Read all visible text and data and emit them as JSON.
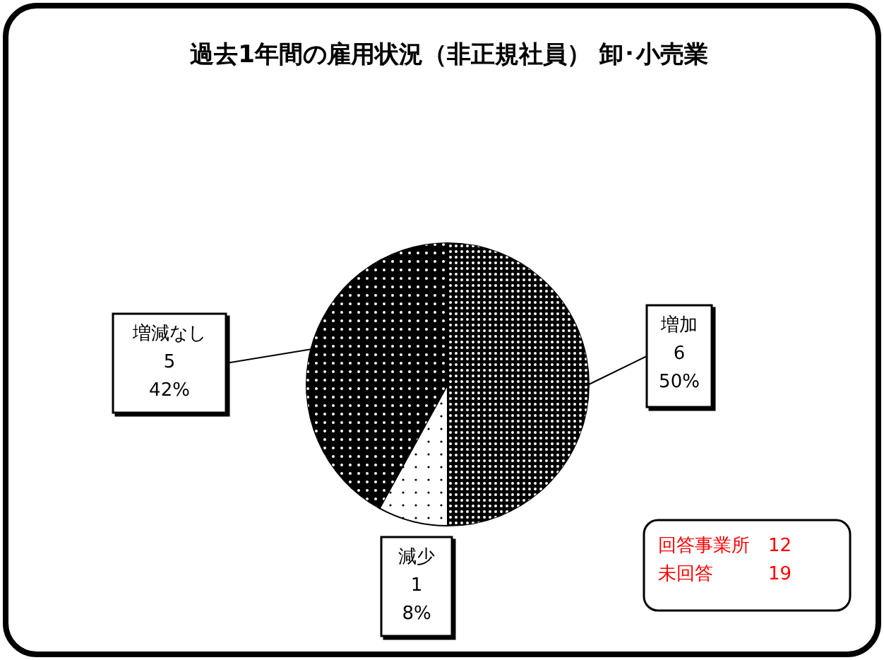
{
  "chart_data": {
    "type": "pie",
    "title": "過去1年間の雇用状況（非正規社員） 卸･小売業",
    "categories": [
      "増加",
      "減少",
      "増減なし"
    ],
    "values": [
      50,
      8,
      42
    ],
    "colors": [
      "#000000",
      "#ffffff",
      "#000000"
    ],
    "value_labels": [
      "6\n50%",
      "1\n8%",
      "5\n42%"
    ],
    "annotations": [
      "回答事業所　12",
      "未回答　　　19"
    ]
  }
}
